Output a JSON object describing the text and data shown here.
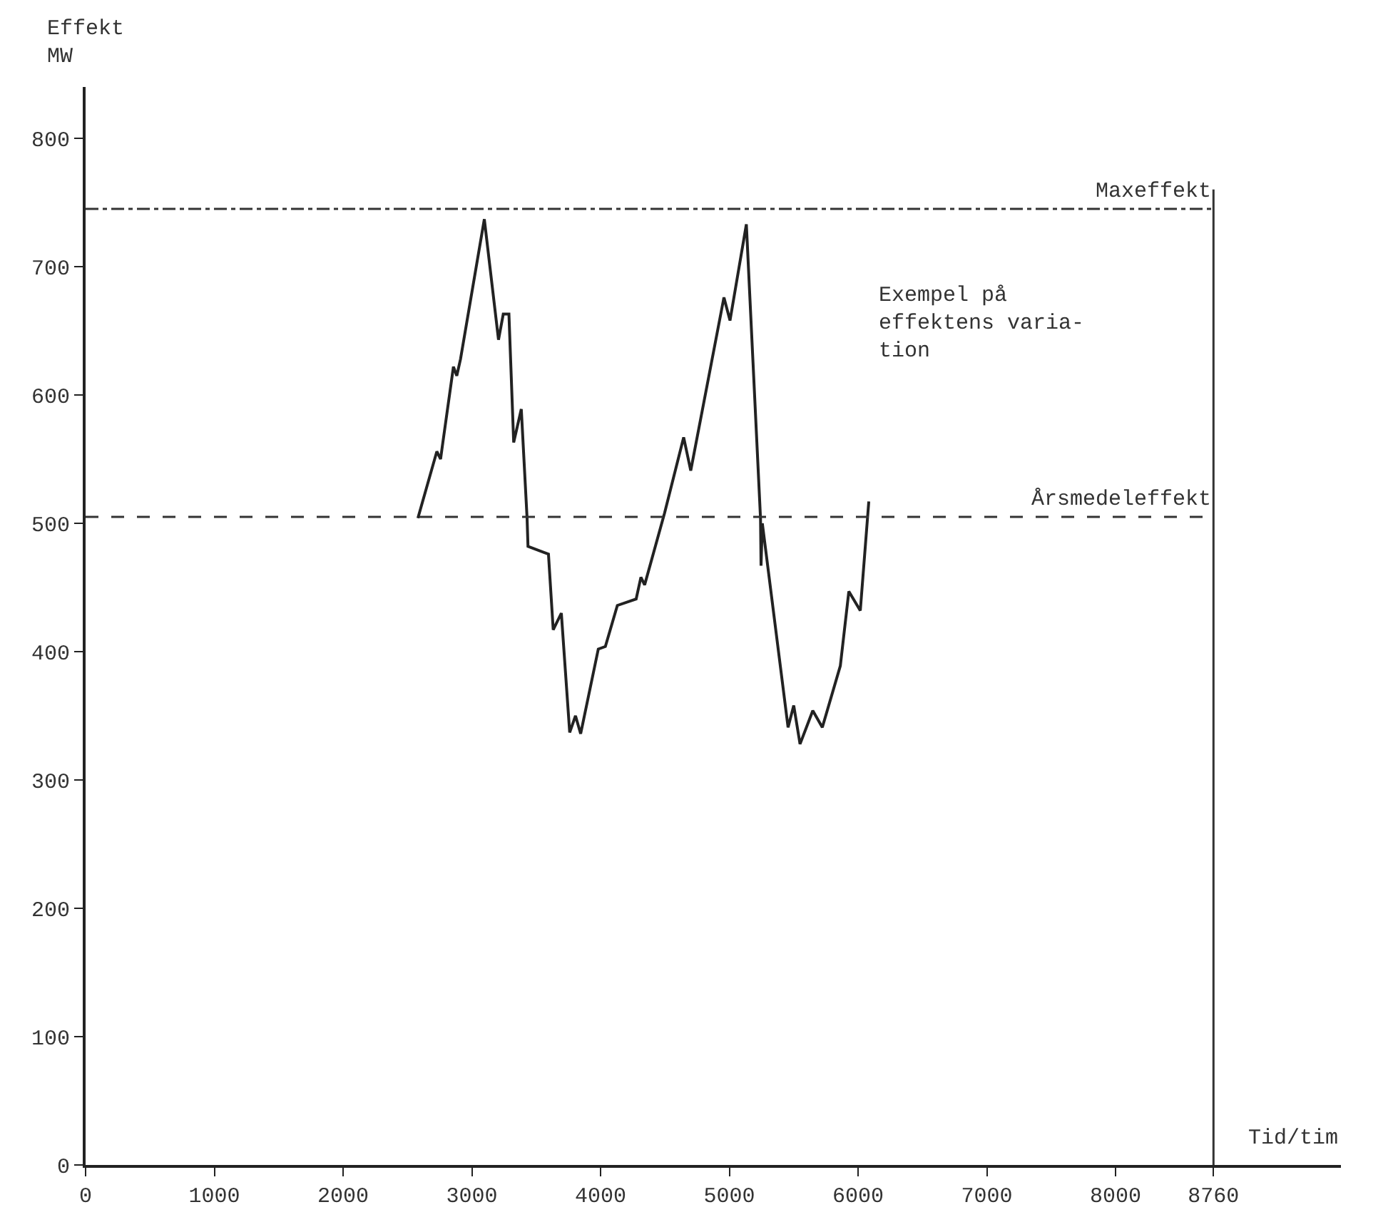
{
  "chart_data": {
    "type": "line",
    "xlabel": "Tid/tim",
    "ylabel": "Effekt\nMW",
    "x": [
      2581,
      2728,
      2757,
      2772,
      2857,
      2883,
      2912,
      3097,
      3207,
      3244,
      3288,
      3325,
      3384,
      3429,
      3436,
      3595,
      3632,
      3695,
      3760,
      3805,
      3845,
      3982,
      4037,
      4130,
      4276,
      4313,
      4342,
      4497,
      4645,
      4700,
      4958,
      5005,
      5132,
      5242,
      5246,
      5256,
      5456,
      5500,
      5549,
      5648,
      5722,
      5862,
      5928,
      6017,
      6083
    ],
    "series": [
      {
        "color": "#222222",
        "values": [
          504,
          556,
          550,
          561,
          622,
          615,
          628,
          737,
          643,
          663,
          663,
          563,
          589,
          504,
          482,
          476,
          417,
          430,
          337,
          350,
          336,
          402,
          404,
          436,
          441,
          458,
          452,
          508,
          567,
          541,
          676,
          658,
          733,
          504,
          467,
          500,
          341,
          358,
          328,
          354,
          341,
          389,
          447,
          432,
          517
        ]
      }
    ],
    "xlim": [
      0,
      9750
    ],
    "ylim": [
      0,
      840
    ],
    "xticks": [
      0,
      1000,
      2000,
      3000,
      4000,
      5000,
      6000,
      7000,
      8000,
      8760
    ],
    "yticks": [
      0,
      100,
      200,
      300,
      400,
      500,
      600,
      700,
      800
    ],
    "ref_lines": [
      {
        "axis": "y",
        "value": 745,
        "label": "Maxeffekt",
        "line_style": "dashdot"
      },
      {
        "axis": "y",
        "value": 505,
        "label": "Årsmedeleffekt",
        "line_style": "dashed"
      },
      {
        "axis": "x",
        "value": 8760,
        "line_style": "solid"
      }
    ],
    "annotations": [
      "Exempel på\neffektens varia-\ntion"
    ],
    "grid": false,
    "marker": "none",
    "line_style": "solid"
  }
}
